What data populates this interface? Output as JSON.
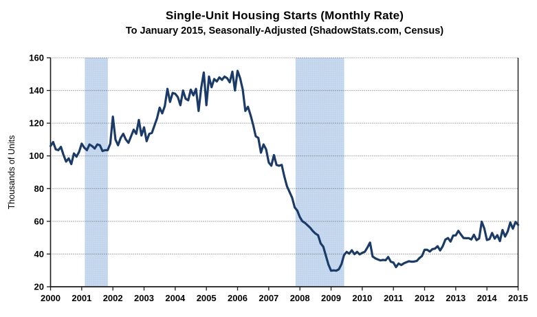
{
  "header": {
    "title": "Single-Unit Housing Starts (Monthly Rate)",
    "subtitle": "To January 2015, Seasonally-Adjusted (ShadowStats.com, Census)"
  },
  "chart_data": {
    "type": "line",
    "title": "Single-Unit Housing Starts (Monthly Rate)",
    "subtitle": "To January 2015, Seasonally-Adjusted (ShadowStats.com, Census)",
    "ylabel": "Thousands of Units",
    "xlabel": "",
    "ylim": [
      20,
      160
    ],
    "yticks": [
      20,
      40,
      60,
      80,
      100,
      120,
      140,
      160
    ],
    "xlim": [
      2000,
      2015
    ],
    "xticks": [
      2000,
      2001,
      2002,
      2003,
      2004,
      2005,
      2006,
      2007,
      2008,
      2009,
      2010,
      2011,
      2012,
      2013,
      2014,
      2015
    ],
    "grid": "horizontal-dotted",
    "legend_position": "none",
    "colors": {
      "line": "#1A3A68",
      "recession_band": "#C6D8EE",
      "recession_band_dot": "#B6CCE8",
      "gridline": "#5A5A5A",
      "axis": "#1A1A1A",
      "text": "#000000"
    },
    "recession_bands": [
      {
        "start": 2001.1,
        "end": 2001.84
      },
      {
        "start": 2007.86,
        "end": 2009.42
      }
    ],
    "series": [
      {
        "name": "Single-Unit Housing Starts",
        "start_year": 2000,
        "start_month": 1,
        "frequency": "monthly",
        "end_label": "January 2015",
        "values": [
          106,
          108.5,
          104,
          103.5,
          105.5,
          100.5,
          96.5,
          98.5,
          95,
          101.5,
          99.5,
          102.5,
          107.5,
          105,
          103.5,
          107,
          106,
          104.5,
          107,
          106.5,
          103,
          103.5,
          103.5,
          107.5,
          124,
          110,
          106.5,
          111,
          113.5,
          110,
          108,
          112,
          116,
          113.5,
          122,
          112.5,
          117.5,
          109,
          113.5,
          114,
          118.5,
          123,
          129.5,
          126,
          130.5,
          141,
          133,
          138.5,
          138,
          136,
          131,
          140,
          135,
          134,
          140.5,
          137,
          141,
          127.5,
          141.5,
          151,
          131,
          148.5,
          142,
          147,
          145.5,
          148,
          146.5,
          148.5,
          147.5,
          145,
          151.5,
          140,
          152,
          147.5,
          140.5,
          127.5,
          130,
          125,
          119,
          112,
          111,
          102,
          107,
          104,
          96,
          94,
          100.5,
          94.5,
          94,
          94.5,
          87.5,
          81.5,
          78,
          74.5,
          68.5,
          66.5,
          62.5,
          60,
          59,
          57.5,
          56,
          54,
          52.5,
          51.5,
          46.5,
          44.5,
          39,
          33.5,
          29.8,
          30,
          29.8,
          30.7,
          33.8,
          39.4,
          41.3,
          40.2,
          42.3,
          39.9,
          41.3,
          39.8,
          40.7,
          41.4,
          44,
          47,
          38.5,
          37.4,
          36.7,
          36.1,
          36.4,
          36.2,
          38.2,
          35.3,
          34.8,
          32,
          34.2,
          33.3,
          34.3,
          35,
          35.6,
          35.3,
          35.4,
          35.8,
          37.5,
          38.8,
          42.6,
          42.6,
          41.5,
          43,
          43.3,
          44.8,
          42.2,
          44.8,
          48.8,
          49.8,
          47.6,
          51.3,
          51.4,
          54.2,
          51.9,
          49.8,
          49.7,
          49.7,
          48.9,
          51.8,
          48.5,
          49.5,
          59.8,
          55.6,
          48.6,
          49.1,
          52.9,
          49.4,
          51.5,
          47.9,
          54.7,
          50.7,
          53.8,
          59.3,
          55.5,
          59.6,
          57.8
        ]
      }
    ]
  }
}
